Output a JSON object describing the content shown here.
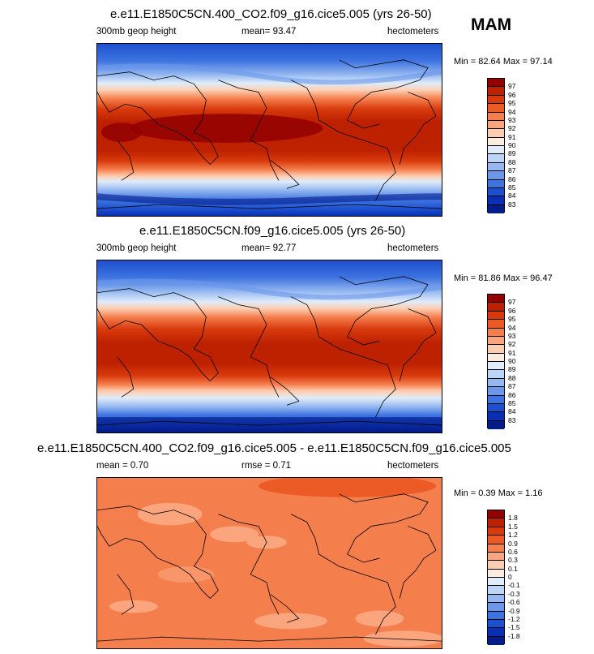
{
  "season": "MAM",
  "panels": [
    {
      "title": "e.e11.E1850C5CN.400_CO2.f09_g16.cice5.005 (yrs 26-50)",
      "left_label": "300mb geop height",
      "center_label": "mean=  93.47",
      "right_label": "hectometers",
      "min_max": "Min =  82.64 Max =  97.14",
      "legend_labels": [
        "97",
        "96",
        "95",
        "94",
        "93",
        "92",
        "91",
        "90",
        "89",
        "88",
        "87",
        "86",
        "85",
        "84",
        "83"
      ],
      "colors": [
        "#930000",
        "#be2100",
        "#d83a0d",
        "#ec5a26",
        "#f57e4d",
        "#faa57d",
        "#fdcdb1",
        "#fcecdf",
        "#e0ecf9",
        "#bcd5f6",
        "#95b8f1",
        "#6b98eb",
        "#3e74e0",
        "#1d50cf",
        "#0a2fb2",
        "#031c8c"
      ]
    },
    {
      "title": "e.e11.E1850C5CN.f09_g16.cice5.005 (yrs 26-50)",
      "left_label": "300mb geop height",
      "center_label": "mean=  92.77",
      "right_label": "hectometers",
      "min_max": "Min =  81.86 Max =  96.47",
      "legend_labels": [
        "97",
        "96",
        "95",
        "94",
        "93",
        "92",
        "91",
        "90",
        "89",
        "88",
        "87",
        "86",
        "85",
        "84",
        "83"
      ],
      "colors": [
        "#930000",
        "#be2100",
        "#d83a0d",
        "#ec5a26",
        "#f57e4d",
        "#faa57d",
        "#fdcdb1",
        "#fcecdf",
        "#e0ecf9",
        "#bcd5f6",
        "#95b8f1",
        "#6b98eb",
        "#3e74e0",
        "#1d50cf",
        "#0a2fb2",
        "#031c8c"
      ]
    },
    {
      "title": "e.e11.E1850C5CN.400_CO2.f09_g16.cice5.005 - e.e11.E1850C5CN.f09_g16.cice5.005",
      "left_label": "mean =  0.70",
      "center_label": "rmse =  0.71",
      "right_label": "hectometers",
      "min_max": "Min =  0.39 Max =  1.16",
      "legend_labels": [
        "1.8",
        "1.5",
        "1.2",
        "0.9",
        "0.6",
        "0.3",
        "0.1",
        "0",
        "-0.1",
        "-0.3",
        "-0.6",
        "-0.9",
        "-1.2",
        "-1.5",
        "-1.8"
      ],
      "colors": [
        "#930000",
        "#be2100",
        "#d83a0d",
        "#ec5a26",
        "#f57e4d",
        "#faa57d",
        "#fdcdb1",
        "#fcecdf",
        "#e0ecf9",
        "#bcd5f6",
        "#95b8f1",
        "#6b98eb",
        "#3e74e0",
        "#1d50cf",
        "#0a2fb2",
        "#031c8c"
      ]
    }
  ]
}
